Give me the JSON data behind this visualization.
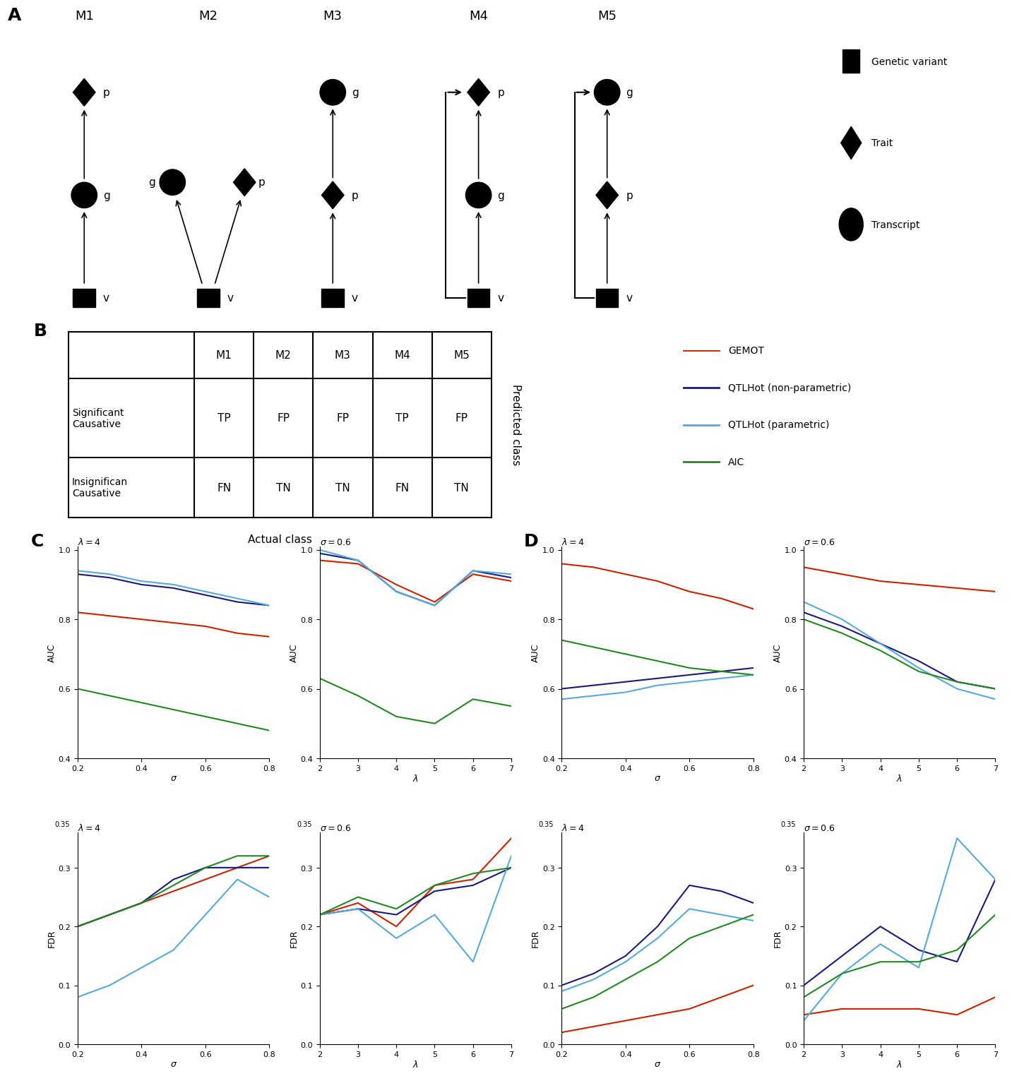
{
  "panel_A_label": "A",
  "panel_B_label": "B",
  "panel_C_label": "C",
  "panel_D_label": "D",
  "models": [
    "M1",
    "M2",
    "M3",
    "M4",
    "M5"
  ],
  "table_cols": [
    "",
    "M1",
    "M2",
    "M3",
    "M4",
    "M5"
  ],
  "table_data": [
    [
      "TP",
      "FP",
      "FP",
      "TP",
      "FP"
    ],
    [
      "FN",
      "TN",
      "TN",
      "FN",
      "TN"
    ]
  ],
  "table_xlabel": "Actual class",
  "table_ylabel": "Predicted class",
  "line_colors": {
    "GEMOT": "#cc2200",
    "QTLHot_non": "#1a1a7e",
    "QTLHot_par": "#55aadd",
    "AIC": "#228822"
  },
  "legend_lines": [
    "GEMOT",
    "QTLHot (non-parametric)",
    "QTLHot (parametric)",
    "AIC"
  ],
  "C_AUC_lambda4": {
    "x": [
      0.2,
      0.3,
      0.4,
      0.5,
      0.6,
      0.7,
      0.8
    ],
    "GEMOT": [
      0.82,
      0.81,
      0.8,
      0.79,
      0.78,
      0.76,
      0.75
    ],
    "QTLHot_non": [
      0.93,
      0.92,
      0.9,
      0.89,
      0.87,
      0.85,
      0.84
    ],
    "QTLHot_par": [
      0.94,
      0.93,
      0.91,
      0.9,
      0.88,
      0.86,
      0.84
    ],
    "AIC": [
      0.6,
      0.58,
      0.56,
      0.54,
      0.52,
      0.5,
      0.48
    ]
  },
  "C_AUC_sigma06": {
    "x": [
      2,
      3,
      4,
      5,
      6,
      7
    ],
    "GEMOT": [
      0.97,
      0.96,
      0.9,
      0.85,
      0.93,
      0.91
    ],
    "QTLHot_non": [
      0.99,
      0.97,
      0.88,
      0.84,
      0.94,
      0.92
    ],
    "QTLHot_par": [
      1.0,
      0.97,
      0.88,
      0.84,
      0.94,
      0.93
    ],
    "AIC": [
      0.63,
      0.58,
      0.52,
      0.5,
      0.57,
      0.55
    ]
  },
  "C_FDR_lambda4": {
    "x": [
      0.2,
      0.3,
      0.4,
      0.5,
      0.6,
      0.7,
      0.8
    ],
    "GEMOT": [
      0.2,
      0.22,
      0.24,
      0.26,
      0.28,
      0.3,
      0.32
    ],
    "QTLHot_non": [
      0.2,
      0.22,
      0.24,
      0.28,
      0.3,
      0.3,
      0.3
    ],
    "QTLHot_par": [
      0.08,
      0.1,
      0.13,
      0.16,
      0.22,
      0.28,
      0.25
    ],
    "AIC": [
      0.2,
      0.22,
      0.24,
      0.27,
      0.3,
      0.32,
      0.32
    ]
  },
  "C_FDR_sigma06": {
    "x": [
      2,
      3,
      4,
      5,
      6,
      7
    ],
    "GEMOT": [
      0.22,
      0.24,
      0.2,
      0.27,
      0.28,
      0.35
    ],
    "QTLHot_non": [
      0.22,
      0.23,
      0.22,
      0.26,
      0.27,
      0.3
    ],
    "QTLHot_par": [
      0.22,
      0.23,
      0.18,
      0.22,
      0.14,
      0.32
    ],
    "AIC": [
      0.22,
      0.25,
      0.23,
      0.27,
      0.29,
      0.3
    ]
  },
  "D_AUC_lambda4": {
    "x": [
      0.2,
      0.3,
      0.4,
      0.5,
      0.6,
      0.7,
      0.8
    ],
    "GEMOT": [
      0.96,
      0.95,
      0.93,
      0.91,
      0.88,
      0.86,
      0.83
    ],
    "QTLHot_non": [
      0.6,
      0.61,
      0.62,
      0.63,
      0.64,
      0.65,
      0.66
    ],
    "QTLHot_par": [
      0.57,
      0.58,
      0.59,
      0.61,
      0.62,
      0.63,
      0.64
    ],
    "AIC": [
      0.74,
      0.72,
      0.7,
      0.68,
      0.66,
      0.65,
      0.64
    ]
  },
  "D_AUC_sigma06": {
    "x": [
      2,
      3,
      4,
      5,
      6,
      7
    ],
    "GEMOT": [
      0.95,
      0.93,
      0.91,
      0.9,
      0.89,
      0.88
    ],
    "QTLHot_non": [
      0.82,
      0.78,
      0.73,
      0.68,
      0.62,
      0.6
    ],
    "QTLHot_par": [
      0.85,
      0.8,
      0.73,
      0.66,
      0.6,
      0.57
    ],
    "AIC": [
      0.8,
      0.76,
      0.71,
      0.65,
      0.62,
      0.6
    ]
  },
  "D_FDR_lambda4": {
    "x": [
      0.2,
      0.3,
      0.4,
      0.5,
      0.6,
      0.7,
      0.8
    ],
    "GEMOT": [
      0.02,
      0.03,
      0.04,
      0.05,
      0.06,
      0.08,
      0.1
    ],
    "QTLHot_non": [
      0.1,
      0.12,
      0.15,
      0.2,
      0.27,
      0.26,
      0.24
    ],
    "QTLHot_par": [
      0.09,
      0.11,
      0.14,
      0.18,
      0.23,
      0.22,
      0.21
    ],
    "AIC": [
      0.06,
      0.08,
      0.11,
      0.14,
      0.18,
      0.2,
      0.22
    ]
  },
  "D_FDR_sigma06": {
    "x": [
      2,
      3,
      4,
      5,
      6,
      7
    ],
    "GEMOT": [
      0.05,
      0.06,
      0.06,
      0.06,
      0.05,
      0.08
    ],
    "QTLHot_non": [
      0.1,
      0.15,
      0.2,
      0.16,
      0.14,
      0.28
    ],
    "QTLHot_par": [
      0.04,
      0.12,
      0.17,
      0.13,
      0.35,
      0.28
    ],
    "AIC": [
      0.08,
      0.12,
      0.14,
      0.14,
      0.16,
      0.22
    ]
  }
}
